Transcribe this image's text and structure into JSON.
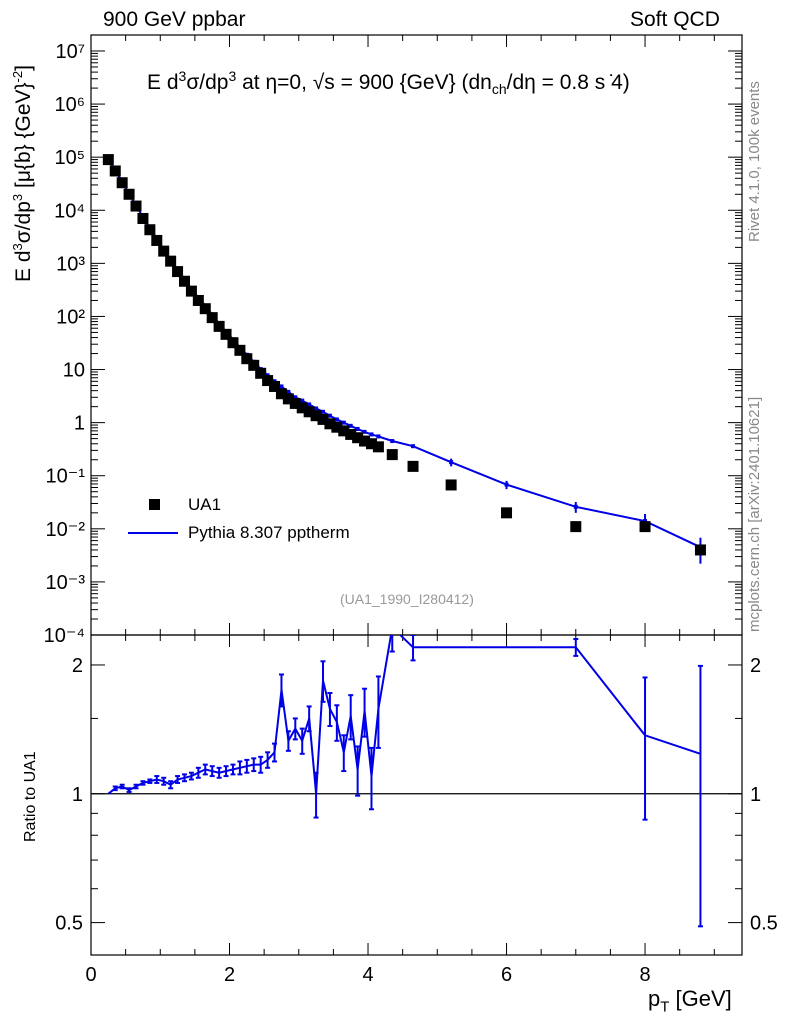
{
  "header": {
    "left": "900 GeV ppbar",
    "right": "Soft QCD"
  },
  "side_labels": {
    "rivet": "Rivet 4.1.0,  100k events",
    "mcplots": "mcplots.cern.ch [arXiv:2401.10621]"
  },
  "analysis_tag": "(UA1_1990_I280412)",
  "chart_data": {
    "type": "scatter",
    "title": "E  d³σ/dp³ at η=0, √s = 900 {GeV} (dn_ch/dη = 0.8 s⋅4)",
    "title_parts": {
      "a": "E   d",
      "b": "3",
      "c": "σ/dp",
      "d": "3",
      "e": " at η=0, √s = 900 {GeV} (dn",
      "f": "ch",
      "g": "/dη = 0.8 s ̇4)"
    },
    "ylabel": "E d³σ/dp³ [μ{b} {GeV}⁻²]",
    "ylabel_parts": {
      "a": "E d",
      "b": "3",
      "c": "σ/dp",
      "d": "3",
      "e": " [μ{b} {GeV}",
      "f": "-2",
      "g": "]"
    },
    "xlabel": "p_T [GeV]",
    "xlabel_parts": {
      "a": "p",
      "b": "T",
      "c": " [GeV]"
    },
    "ratio_ylabel": "Ratio to UA1",
    "xlim": [
      0,
      9.4
    ],
    "ylim": [
      0.0001,
      20000000
    ],
    "ratio_ylim": [
      0.42,
      2.35
    ],
    "x_ticks": [
      "0",
      "2",
      "4",
      "6",
      "8"
    ],
    "y_ticks": [
      "10⁻⁴",
      "10⁻³",
      "10⁻²",
      "10⁻¹",
      "1",
      "10",
      "10²",
      "10³",
      "10⁴",
      "10⁵",
      "10⁶",
      "10⁷"
    ],
    "ratio_ticks": [
      "0.5",
      "1",
      "2"
    ],
    "legend": {
      "position": "bottom-left",
      "entries": [
        "UA1",
        "Pythia 8.307 pptherm"
      ]
    },
    "data_series": {
      "name": "UA1",
      "x": [
        0.25,
        0.35,
        0.45,
        0.55,
        0.65,
        0.75,
        0.85,
        0.95,
        1.05,
        1.15,
        1.25,
        1.35,
        1.45,
        1.55,
        1.65,
        1.75,
        1.85,
        1.95,
        2.05,
        2.15,
        2.25,
        2.35,
        2.45,
        2.55,
        2.65,
        2.75,
        2.85,
        2.95,
        3.05,
        3.15,
        3.25,
        3.35,
        3.45,
        3.55,
        3.65,
        3.75,
        3.85,
        3.95,
        4.05,
        4.15,
        4.35,
        4.65,
        5.2,
        6.0,
        7.0,
        8.0,
        8.8
      ],
      "y": [
        90000,
        55000,
        33000,
        20000,
        12000,
        7000,
        4300,
        2700,
        1700,
        1100,
        700,
        460,
        300,
        200,
        140,
        95,
        65,
        46,
        32,
        23,
        16,
        12,
        8.5,
        6.2,
        4.8,
        3.5,
        2.8,
        2.3,
        1.9,
        1.6,
        1.35,
        1.15,
        0.95,
        0.82,
        0.7,
        0.6,
        0.52,
        0.45,
        0.4,
        0.35,
        0.25,
        0.15,
        0.067,
        0.02,
        0.011,
        0.011,
        0.004
      ]
    },
    "mc_series": {
      "name": "Pythia 8.307 pptherm",
      "x": [
        0.25,
        0.35,
        0.45,
        0.55,
        0.65,
        0.75,
        0.85,
        0.95,
        1.05,
        1.15,
        1.25,
        1.35,
        1.45,
        1.55,
        1.65,
        1.75,
        1.85,
        1.95,
        2.05,
        2.15,
        2.25,
        2.35,
        2.45,
        2.55,
        2.65,
        2.75,
        2.85,
        2.95,
        3.05,
        3.15,
        3.25,
        3.35,
        3.45,
        3.55,
        3.65,
        3.75,
        3.85,
        3.95,
        4.05,
        4.15,
        4.35,
        4.65,
        5.2,
        6.0,
        7.0,
        8.0,
        8.8
      ],
      "y": [
        90000,
        56500,
        34300,
        20300,
        12500,
        7400,
        4600,
        2900,
        1820,
        1150,
        760,
        500,
        330,
        225,
        160,
        108,
        73,
        52,
        37,
        26,
        19,
        14,
        10.2,
        7.8,
        6.0,
        4.8,
        3.8,
        3.0,
        2.6,
        2.2,
        1.85,
        1.6,
        1.35,
        1.15,
        1.0,
        0.87,
        0.76,
        0.67,
        0.6,
        0.55,
        0.45,
        0.36,
        0.18,
        0.068,
        0.026,
        0.014,
        0.0045
      ],
      "errors": [
        0,
        0,
        0,
        0,
        0,
        0,
        0,
        0,
        0,
        0,
        0,
        0,
        0,
        0,
        0,
        0,
        0,
        0,
        0,
        0,
        0,
        0,
        0,
        0,
        0,
        0,
        0,
        0,
        0,
        0,
        0,
        0,
        0,
        0,
        0,
        0,
        0,
        0,
        0,
        0,
        0,
        0,
        0.03,
        0.012,
        0.006,
        0.005,
        0.0023
      ]
    },
    "ratio_series": {
      "x": [
        0.25,
        0.35,
        0.45,
        0.55,
        0.65,
        0.75,
        0.85,
        0.95,
        1.05,
        1.15,
        1.25,
        1.35,
        1.45,
        1.55,
        1.65,
        1.75,
        1.85,
        1.95,
        2.05,
        2.15,
        2.25,
        2.35,
        2.45,
        2.55,
        2.65,
        2.75,
        2.85,
        2.95,
        3.05,
        3.15,
        3.25,
        3.35,
        3.45,
        3.55,
        3.65,
        3.75,
        3.85,
        3.95,
        4.05,
        4.15,
        4.35,
        4.65,
        7.0,
        8.0,
        8.8
      ],
      "y": [
        1.0,
        1.03,
        1.04,
        1.02,
        1.04,
        1.06,
        1.07,
        1.08,
        1.07,
        1.05,
        1.08,
        1.09,
        1.1,
        1.12,
        1.14,
        1.13,
        1.12,
        1.13,
        1.14,
        1.15,
        1.16,
        1.17,
        1.17,
        1.2,
        1.25,
        1.75,
        1.33,
        1.42,
        1.33,
        1.5,
        1.0,
        1.84,
        1.58,
        1.47,
        1.25,
        1.52,
        1.14,
        1.56,
        1.1,
        1.58,
        2.45,
        2.2,
        2.2,
        1.37,
        1.24
      ],
      "errors": [
        0,
        0.01,
        0.01,
        0.01,
        0.01,
        0.01,
        0.01,
        0.02,
        0.02,
        0.02,
        0.02,
        0.02,
        0.02,
        0.03,
        0.03,
        0.03,
        0.03,
        0.03,
        0.03,
        0.04,
        0.04,
        0.04,
        0.05,
        0.05,
        0.06,
        0.15,
        0.07,
        0.08,
        0.09,
        0.1,
        0.12,
        0.2,
        0.14,
        0.14,
        0.12,
        0.18,
        0.15,
        0.2,
        0.18,
        0.3,
        0.3,
        0.15,
        0.1,
        0.5,
        0.75
      ]
    }
  }
}
